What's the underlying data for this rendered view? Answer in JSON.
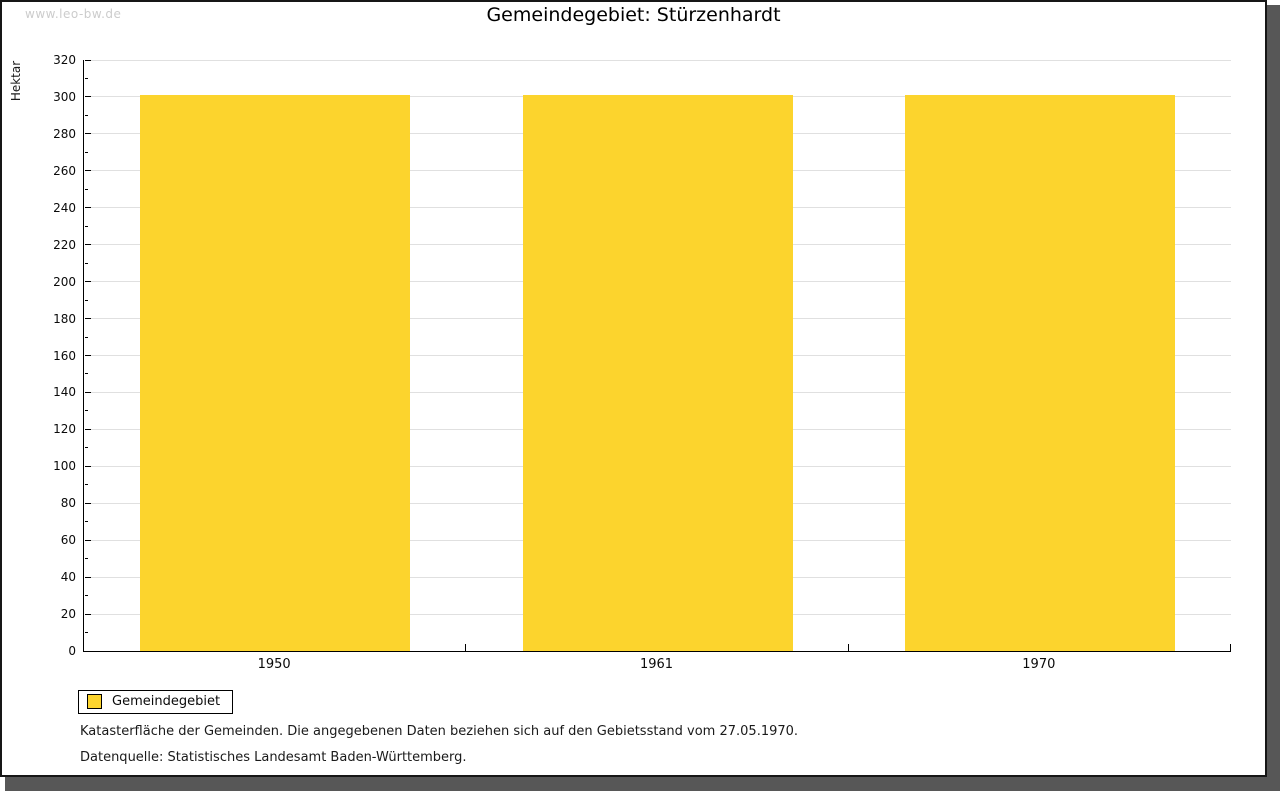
{
  "watermark": "www.leo-bw.de",
  "title": "Gemeindegebiet: Stürzenhardt",
  "chart_data": {
    "type": "bar",
    "categories": [
      "1950",
      "1961",
      "1970"
    ],
    "series": [
      {
        "name": "Gemeindegebiet",
        "values": [
          301,
          301,
          301
        ]
      }
    ],
    "title": "Gemeindegebiet: Stürzenhardt",
    "xlabel": "",
    "ylabel": "Hektar",
    "ylim": [
      0,
      320
    ],
    "ytick_step": 20,
    "ytick_minor_step": 10,
    "grid": true,
    "legend_position": "bottom-left",
    "bar_color": "#fcd42d",
    "grid_color": "#e0e0e0",
    "axis_color": "#000000"
  },
  "legend": {
    "items": [
      {
        "label": "Gemeindegebiet",
        "color": "#fcd42d"
      }
    ]
  },
  "footer": {
    "line1": "Katasterfläche der Gemeinden. Die angegebenen Daten beziehen sich auf den Gebietsstand vom 27.05.1970.",
    "line2": "Datenquelle: Statistisches Landesamt Baden-Württemberg."
  }
}
